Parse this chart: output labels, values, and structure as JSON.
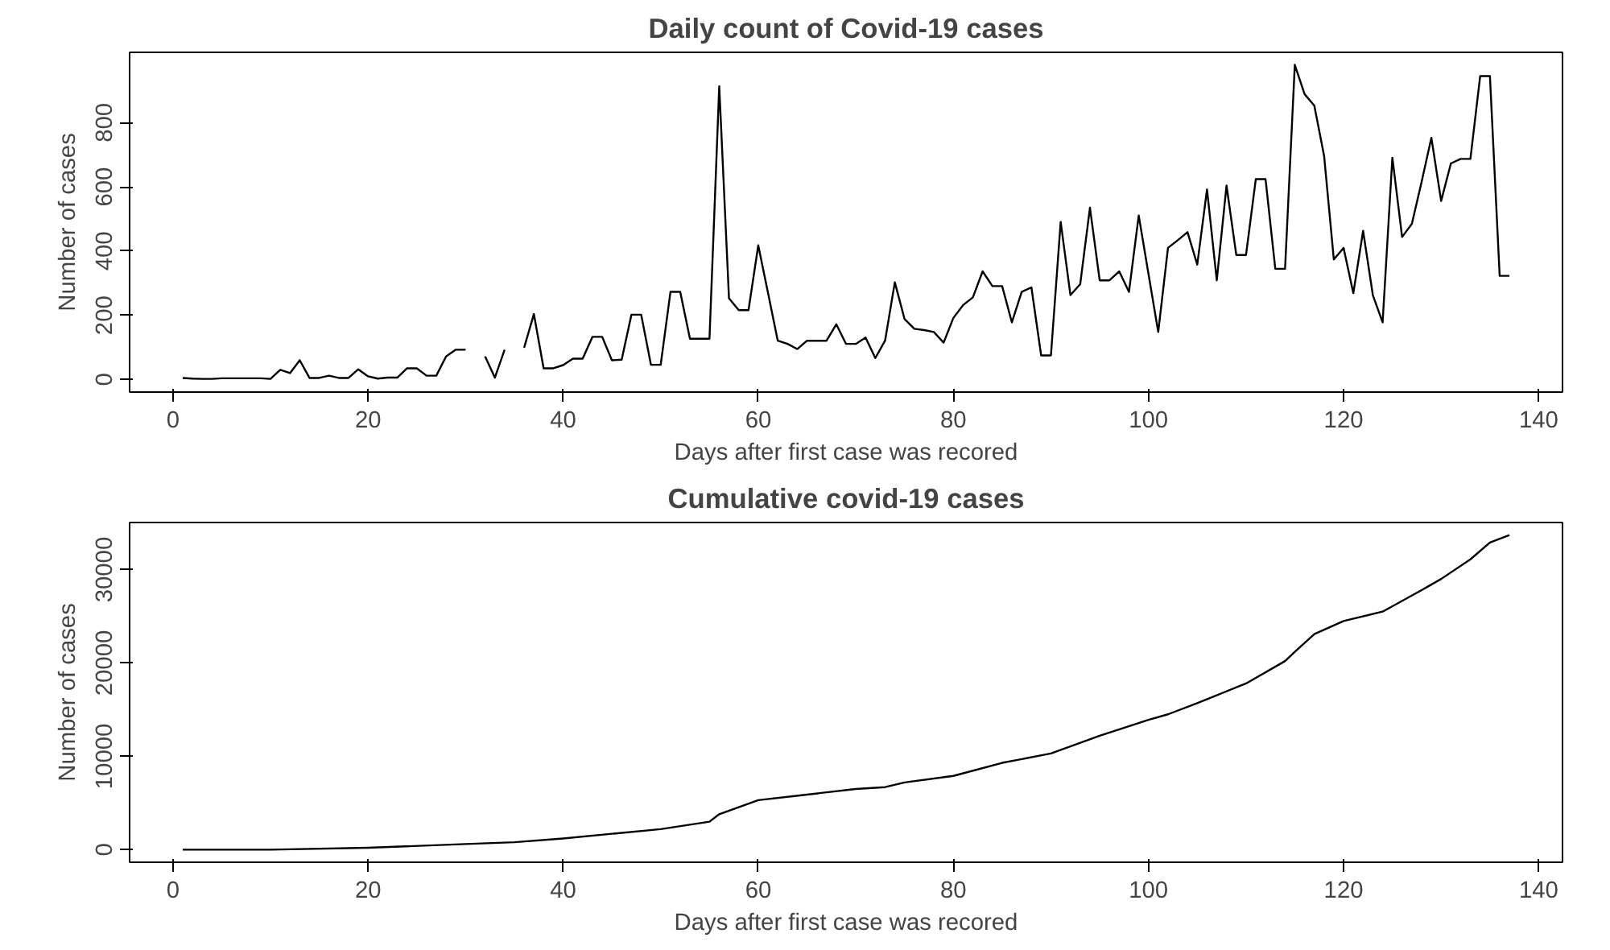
{
  "chart_data": [
    {
      "type": "line",
      "title": "Daily count of Covid-19 cases",
      "xlabel": "Days after first case was recored",
      "ylabel": "Number of cases",
      "x": [
        1,
        2,
        3,
        4,
        5,
        6,
        7,
        8,
        9,
        10,
        11,
        12,
        13,
        14,
        15,
        16,
        17,
        18,
        19,
        20,
        21,
        22,
        23,
        24,
        25,
        26,
        27,
        28,
        29,
        30,
        31,
        32,
        33,
        34,
        35,
        36,
        37,
        38,
        39,
        40,
        41,
        42,
        43,
        44,
        45,
        46,
        47,
        48,
        49,
        50,
        51,
        52,
        53,
        54,
        55,
        56,
        57,
        58,
        59,
        60,
        61,
        62,
        63,
        64,
        65,
        66,
        67,
        68,
        69,
        70,
        71,
        72,
        73,
        74,
        75,
        76,
        77,
        78,
        79,
        80,
        81,
        82,
        83,
        84,
        85,
        86,
        87,
        88,
        89,
        90,
        91,
        92,
        93,
        94,
        95,
        96,
        97,
        98,
        99,
        100,
        101,
        102,
        103,
        104,
        105,
        106,
        107,
        108,
        109,
        110,
        111,
        112,
        113,
        114,
        115,
        116,
        117,
        118,
        119,
        120,
        121,
        122,
        123,
        124,
        125,
        126,
        127,
        128,
        129,
        130,
        131,
        132,
        133,
        134,
        135,
        136,
        137
      ],
      "series": [
        {
          "color": "#000000",
          "values": [
            5,
            3,
            2,
            2,
            4,
            4,
            4,
            4,
            4,
            2,
            30,
            20,
            60,
            5,
            5,
            12,
            5,
            5,
            32,
            10,
            3,
            6,
            6,
            35,
            35,
            12,
            12,
            72,
            93,
            93,
            null,
            72,
            6,
            93,
            null,
            99,
            204,
            35,
            35,
            45,
            65,
            65,
            133,
            133,
            60,
            62,
            202,
            202,
            46,
            46,
            273,
            273,
            127,
            127,
            127,
            913,
            253,
            216,
            216,
            418,
            270,
            121,
            111,
            95,
            121,
            121,
            121,
            172,
            111,
            111,
            131,
            67,
            121,
            303,
            188,
            158,
            154,
            148,
            115,
            192,
            232,
            256,
            337,
            291,
            291,
            178,
            273,
            287,
            75,
            75,
            491,
            263,
            297,
            535,
            309,
            309,
            337,
            273,
            511,
            329,
            148,
            410,
            434,
            459,
            358,
            592,
            309,
            604,
            388,
            388,
            624,
            624,
            345,
            345,
            980,
            889,
            853,
            697,
            374,
            410,
            269,
            463,
            263,
            178,
            691,
            444,
            485,
            616,
            753,
            556,
            673,
            687,
            687,
            945,
            945,
            323,
            323
          ]
        }
      ],
      "xlim": [
        -4.44,
        142.44
      ],
      "ylim": [
        -39,
        1019
      ],
      "xticks": [
        0,
        20,
        40,
        60,
        80,
        100,
        120,
        140
      ],
      "yticks": [
        0,
        200,
        400,
        600,
        800
      ]
    },
    {
      "type": "line",
      "title": "Cumulative covid-19 cases",
      "xlabel": "Days after first case was recored",
      "ylabel": "Number of cases",
      "x": [
        1,
        10,
        20,
        30,
        35,
        40,
        45,
        50,
        55,
        56,
        60,
        65,
        70,
        73,
        75,
        80,
        85,
        90,
        95,
        100,
        102,
        105,
        110,
        114,
        115,
        117,
        120,
        124,
        128,
        130,
        133,
        135,
        137
      ],
      "series": [
        {
          "color": "#000000",
          "values": [
            0,
            0,
            200,
            600,
            800,
            1200,
            1700,
            2200,
            3000,
            3800,
            5300,
            5900,
            6500,
            6700,
            7200,
            7900,
            9300,
            10300,
            12200,
            13900,
            14500,
            15700,
            17800,
            20200,
            21200,
            23100,
            24500,
            25500,
            27800,
            29000,
            31100,
            32900,
            33700
          ]
        }
      ],
      "xlim": [
        -4.44,
        142.44
      ],
      "ylim": [
        -1348,
        35048
      ],
      "xticks": [
        0,
        20,
        40,
        60,
        80,
        100,
        120,
        140
      ],
      "yticks": [
        0,
        10000,
        20000,
        30000
      ]
    }
  ]
}
